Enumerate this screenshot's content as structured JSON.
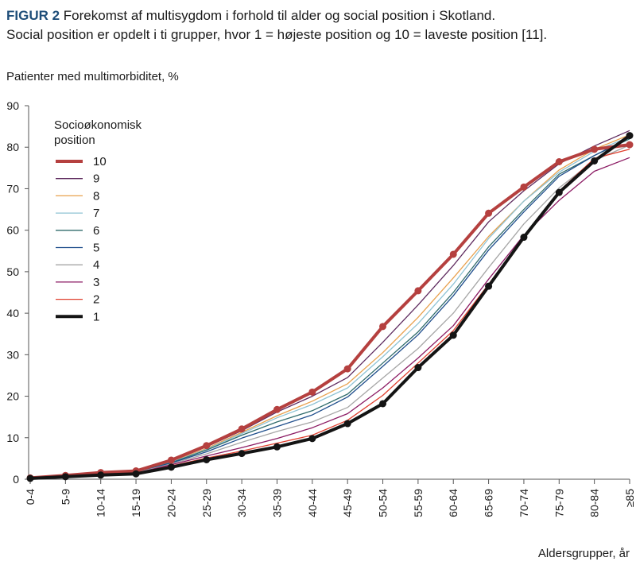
{
  "caption": {
    "figure_label": "FIGUR 2",
    "line1": "Forekomst af multisygdom i forhold til alder og social position i Skotland.",
    "line2": "Social position er opdelt i ti grupper, hvor 1 = højeste position og 10 = laveste position [11]."
  },
  "chart_data": {
    "type": "line",
    "ylabel": "Patienter med multimorbiditet, %",
    "xlabel": "Aldersgrupper, år",
    "ylim": [
      0,
      90
    ],
    "yticks": [
      0,
      10,
      20,
      30,
      40,
      50,
      60,
      70,
      80,
      90
    ],
    "grid": false,
    "categories": [
      "0-4",
      "5-9",
      "10-14",
      "15-19",
      "20-24",
      "25-29",
      "30-34",
      "35-39",
      "40-44",
      "45-49",
      "50-54",
      "55-59",
      "60-64",
      "65-69",
      "70-74",
      "75-79",
      "80-84",
      "≥85"
    ],
    "legend": {
      "title_line1": "Socioøkonomisk",
      "title_line2": "position",
      "placement": "upper-left"
    },
    "series": [
      {
        "name": "10",
        "color": "#b5403f",
        "width": 4,
        "markers": true,
        "values": [
          0.3,
          0.9,
          1.6,
          2.0,
          4.6,
          8.1,
          12.1,
          16.8,
          21.0,
          26.6,
          36.8,
          45.4,
          54.2,
          64.1,
          70.4,
          76.5,
          79.5,
          80.6
        ]
      },
      {
        "name": "9",
        "color": "#5e2a5e",
        "width": 1.3,
        "markers": false,
        "values": [
          0.3,
          0.9,
          1.5,
          1.9,
          4.4,
          7.8,
          11.7,
          16.2,
          20.0,
          24.5,
          33.0,
          42.0,
          51.5,
          62.0,
          69.5,
          76.0,
          80.3,
          84.0
        ]
      },
      {
        "name": "8",
        "color": "#e8a14e",
        "width": 1.3,
        "markers": false,
        "values": [
          0.3,
          0.8,
          1.5,
          1.8,
          4.2,
          7.4,
          11.3,
          15.3,
          18.8,
          23.0,
          30.5,
          39.0,
          48.5,
          58.5,
          67.0,
          74.5,
          79.5,
          83.0
        ]
      },
      {
        "name": "7",
        "color": "#8fc3d4",
        "width": 1.3,
        "markers": false,
        "values": [
          0.3,
          0.8,
          1.4,
          1.8,
          4.1,
          7.2,
          11.0,
          14.8,
          18.0,
          22.0,
          29.5,
          37.5,
          47.0,
          58.0,
          67.0,
          74.0,
          79.0,
          82.5
        ]
      },
      {
        "name": "6",
        "color": "#2f6b6b",
        "width": 1.3,
        "markers": false,
        "values": [
          0.3,
          0.8,
          1.4,
          1.7,
          4.0,
          7.0,
          10.6,
          13.8,
          16.5,
          20.5,
          28.0,
          35.5,
          45.0,
          56.0,
          65.0,
          73.5,
          78.0,
          82.0
        ]
      },
      {
        "name": "5",
        "color": "#1f4e8c",
        "width": 1.3,
        "markers": false,
        "values": [
          0.3,
          0.8,
          1.3,
          1.7,
          3.9,
          6.6,
          9.9,
          12.7,
          15.5,
          19.8,
          27.2,
          34.8,
          44.2,
          55.2,
          64.4,
          73.0,
          78.0,
          82.3
        ]
      },
      {
        "name": "4",
        "color": "#a6a6a6",
        "width": 1.3,
        "markers": false,
        "values": [
          0.3,
          0.7,
          1.2,
          1.6,
          3.7,
          6.1,
          8.9,
          11.5,
          13.8,
          17.3,
          24.4,
          31.5,
          40.0,
          51.0,
          61.5,
          70.2,
          76.8,
          80.5
        ]
      },
      {
        "name": "3",
        "color": "#8b1a63",
        "width": 1.3,
        "markers": false,
        "values": [
          0.3,
          0.7,
          1.2,
          1.5,
          3.5,
          5.6,
          7.6,
          9.8,
          12.4,
          15.8,
          22.0,
          29.2,
          37.0,
          48.2,
          58.8,
          67.2,
          74.2,
          77.5
        ]
      },
      {
        "name": "2",
        "color": "#e0402f",
        "width": 1.3,
        "markers": false,
        "values": [
          0.3,
          0.7,
          1.1,
          1.5,
          3.2,
          5.1,
          6.8,
          8.7,
          10.6,
          14.2,
          20.2,
          28.0,
          35.8,
          47.0,
          58.5,
          69.4,
          77.3,
          79.5
        ]
      },
      {
        "name": "1",
        "color": "#141414",
        "width": 4,
        "markers": true,
        "values": [
          0.2,
          0.6,
          1.0,
          1.3,
          2.9,
          4.7,
          6.2,
          7.8,
          9.8,
          13.4,
          18.2,
          26.9,
          34.7,
          46.5,
          58.3,
          69.1,
          76.7,
          82.8
        ]
      }
    ]
  }
}
